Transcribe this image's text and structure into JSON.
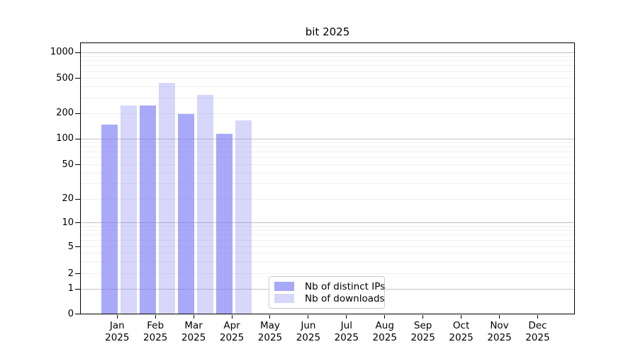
{
  "chart_data": {
    "type": "bar",
    "title": "bit 2025",
    "xlabel": "",
    "ylabel": "",
    "yscale": "symlog (linear below 1, log above)",
    "ylim": [
      0,
      2000
    ],
    "grid": true,
    "ytick_labels": [
      "0",
      "1",
      "2",
      "5",
      "10",
      "20",
      "50",
      "100",
      "200",
      "500",
      "1000"
    ],
    "ytick_values": [
      0,
      1,
      2,
      5,
      10,
      20,
      50,
      100,
      200,
      500,
      1000
    ],
    "categories": [
      "Jan",
      "Feb",
      "Mar",
      "Apr",
      "May",
      "Jun",
      "Jul",
      "Aug",
      "Sep",
      "Oct",
      "Nov",
      "Dec"
    ],
    "category_year": "2025",
    "series": [
      {
        "name": "Nb of distinct IPs",
        "color": "rgba(124,124,246,0.66)",
        "values": [
          147,
          245,
          197,
          115,
          0,
          0,
          0,
          0,
          0,
          0,
          0,
          0
        ]
      },
      {
        "name": "Nb of downloads",
        "color": "rgba(124,124,246,0.30)",
        "values": [
          245,
          440,
          325,
          166,
          0,
          0,
          0,
          0,
          0,
          0,
          0,
          0
        ]
      }
    ],
    "legend_position": "lower center inside plot"
  }
}
